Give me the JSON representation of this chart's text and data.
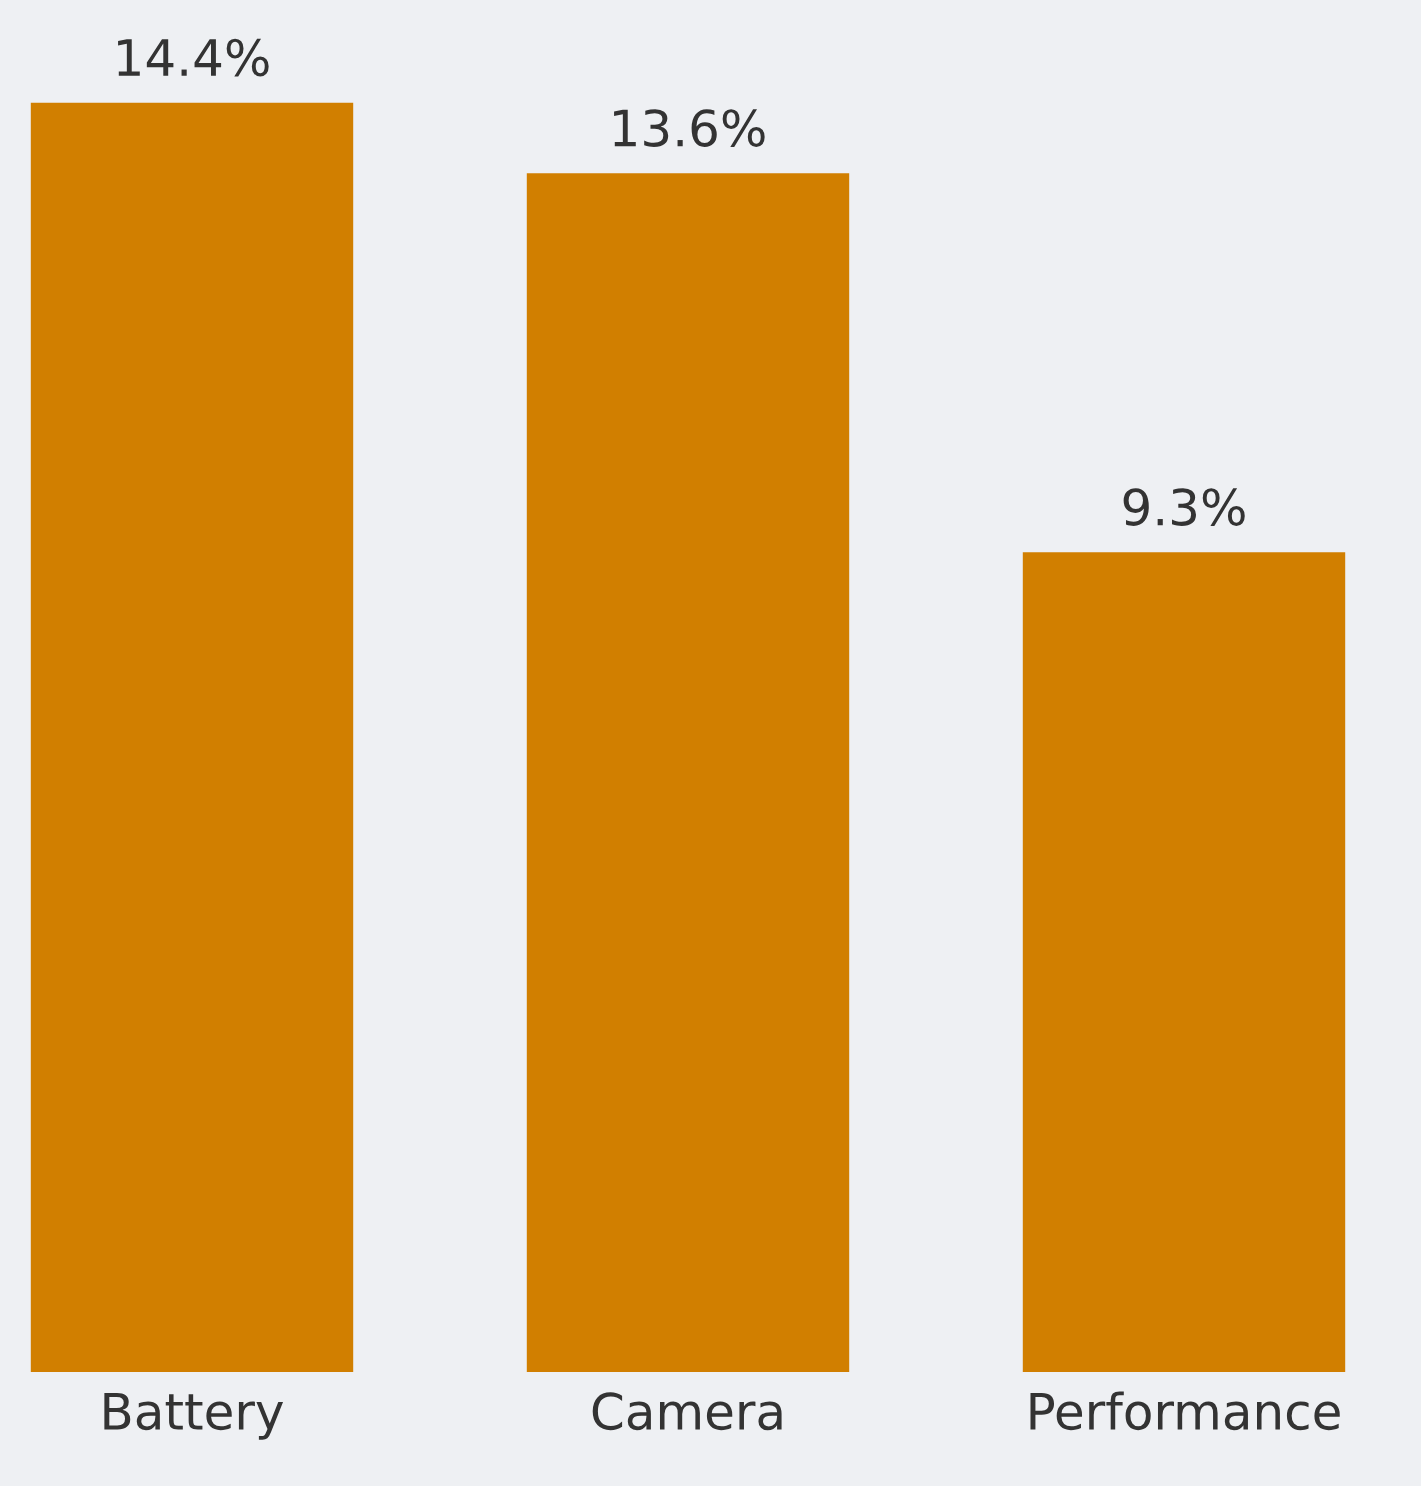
{
  "chart_data": {
    "type": "bar",
    "categories": [
      "Battery",
      "Camera",
      "Performance"
    ],
    "values": [
      14.4,
      13.6,
      9.3
    ],
    "value_labels": [
      "14.4%",
      "13.6%",
      "9.3%"
    ],
    "color": "#d17f00",
    "grid": false,
    "legend": false
  }
}
